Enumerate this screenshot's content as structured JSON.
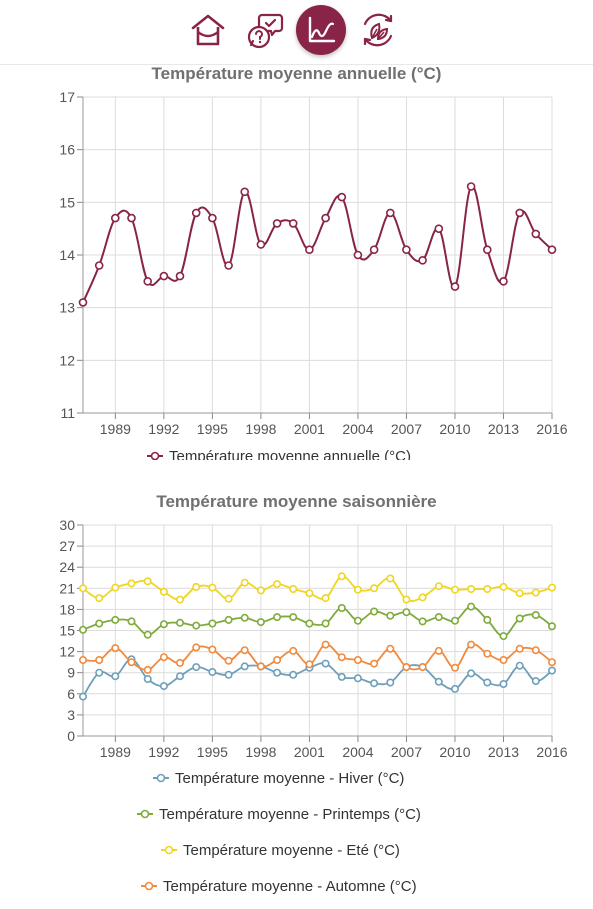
{
  "nav": {
    "items": [
      {
        "icon": "home-icon",
        "active": false
      },
      {
        "icon": "questions-icon",
        "active": false
      },
      {
        "icon": "chart-icon",
        "active": true
      },
      {
        "icon": "leaves-icon",
        "active": false
      }
    ],
    "accent": "#8a2348"
  },
  "chart_data": [
    {
      "type": "line",
      "title": "Température moyenne annuelle (°C)",
      "xlabel": "",
      "ylabel": "",
      "x": [
        1987,
        1988,
        1989,
        1990,
        1991,
        1992,
        1993,
        1994,
        1995,
        1996,
        1997,
        1998,
        1999,
        2000,
        2001,
        2002,
        2003,
        2004,
        2005,
        2006,
        2007,
        2008,
        2009,
        2010,
        2011,
        2012,
        2013,
        2014,
        2015,
        2016
      ],
      "xticks": [
        "1989",
        "1992",
        "1995",
        "1998",
        "2001",
        "2004",
        "2007",
        "2010",
        "2013",
        "2016"
      ],
      "ylim": [
        11,
        17
      ],
      "yticks": [
        "11",
        "12",
        "13",
        "14",
        "15",
        "16",
        "17"
      ],
      "grid": true,
      "legend": "bottom",
      "series": [
        {
          "name": "Température moyenne annuelle (°C)",
          "color": "#8a2348",
          "values": [
            13.1,
            13.8,
            14.7,
            14.7,
            13.5,
            13.6,
            13.6,
            14.8,
            14.7,
            13.8,
            15.2,
            14.2,
            14.6,
            14.6,
            14.1,
            14.7,
            15.1,
            14.0,
            14.1,
            14.8,
            14.1,
            13.9,
            14.5,
            13.4,
            15.3,
            14.1,
            13.5,
            14.8,
            14.4,
            14.1
          ]
        }
      ]
    },
    {
      "type": "line",
      "title": "Température moyenne saisonnière",
      "xlabel": "",
      "ylabel": "",
      "x": [
        1987,
        1988,
        1989,
        1990,
        1991,
        1992,
        1993,
        1994,
        1995,
        1996,
        1997,
        1998,
        1999,
        2000,
        2001,
        2002,
        2003,
        2004,
        2005,
        2006,
        2007,
        2008,
        2009,
        2010,
        2011,
        2012,
        2013,
        2014,
        2015,
        2016
      ],
      "xticks": [
        "1989",
        "1992",
        "1995",
        "1998",
        "2001",
        "2004",
        "2007",
        "2010",
        "2013",
        "2016"
      ],
      "ylim": [
        0,
        30
      ],
      "yticks": [
        "0",
        "3",
        "6",
        "9",
        "12",
        "15",
        "18",
        "21",
        "24",
        "27",
        "30"
      ],
      "grid": true,
      "legend": "bottom",
      "series": [
        {
          "name": "Température moyenne - Hiver (°C)",
          "color": "#6e9fba",
          "values": [
            5.6,
            9.0,
            8.5,
            10.9,
            8.1,
            7.1,
            8.5,
            9.8,
            9.1,
            8.7,
            9.9,
            9.9,
            9.0,
            8.7,
            9.7,
            10.3,
            8.4,
            8.2,
            7.5,
            7.6,
            9.8,
            9.8,
            7.7,
            6.7,
            8.9,
            7.6,
            7.4,
            10.0,
            7.8,
            9.3
          ]
        },
        {
          "name": "Température moyenne - Printemps (°C)",
          "color": "#7faa3c",
          "values": [
            15.1,
            16.0,
            16.5,
            16.3,
            14.4,
            15.9,
            16.1,
            15.7,
            16.0,
            16.5,
            16.8,
            16.2,
            16.9,
            16.9,
            16.0,
            16.0,
            18.2,
            16.4,
            17.7,
            17.1,
            17.6,
            16.3,
            16.9,
            16.4,
            18.4,
            16.5,
            14.2,
            16.7,
            17.2,
            15.6
          ]
        },
        {
          "name": "Température moyenne - Eté (°C)",
          "color": "#f0d521",
          "values": [
            21.0,
            19.6,
            21.1,
            21.7,
            22.0,
            20.5,
            19.4,
            21.2,
            21.1,
            19.5,
            21.8,
            20.7,
            21.6,
            20.9,
            20.3,
            19.6,
            22.7,
            20.8,
            21.0,
            22.4,
            19.4,
            19.7,
            21.3,
            20.8,
            20.9,
            20.9,
            21.2,
            20.3,
            20.4,
            21.1
          ]
        },
        {
          "name": "Température moyenne - Automne (°C)",
          "color": "#f08a3e",
          "values": [
            10.8,
            10.8,
            12.5,
            10.5,
            9.4,
            11.2,
            10.4,
            12.6,
            12.3,
            10.7,
            12.2,
            9.9,
            10.8,
            12.1,
            10.2,
            13.0,
            11.2,
            10.8,
            10.3,
            12.4,
            9.8,
            9.8,
            12.1,
            9.7,
            13.0,
            11.7,
            10.8,
            12.4,
            12.2,
            10.5
          ]
        }
      ]
    }
  ]
}
